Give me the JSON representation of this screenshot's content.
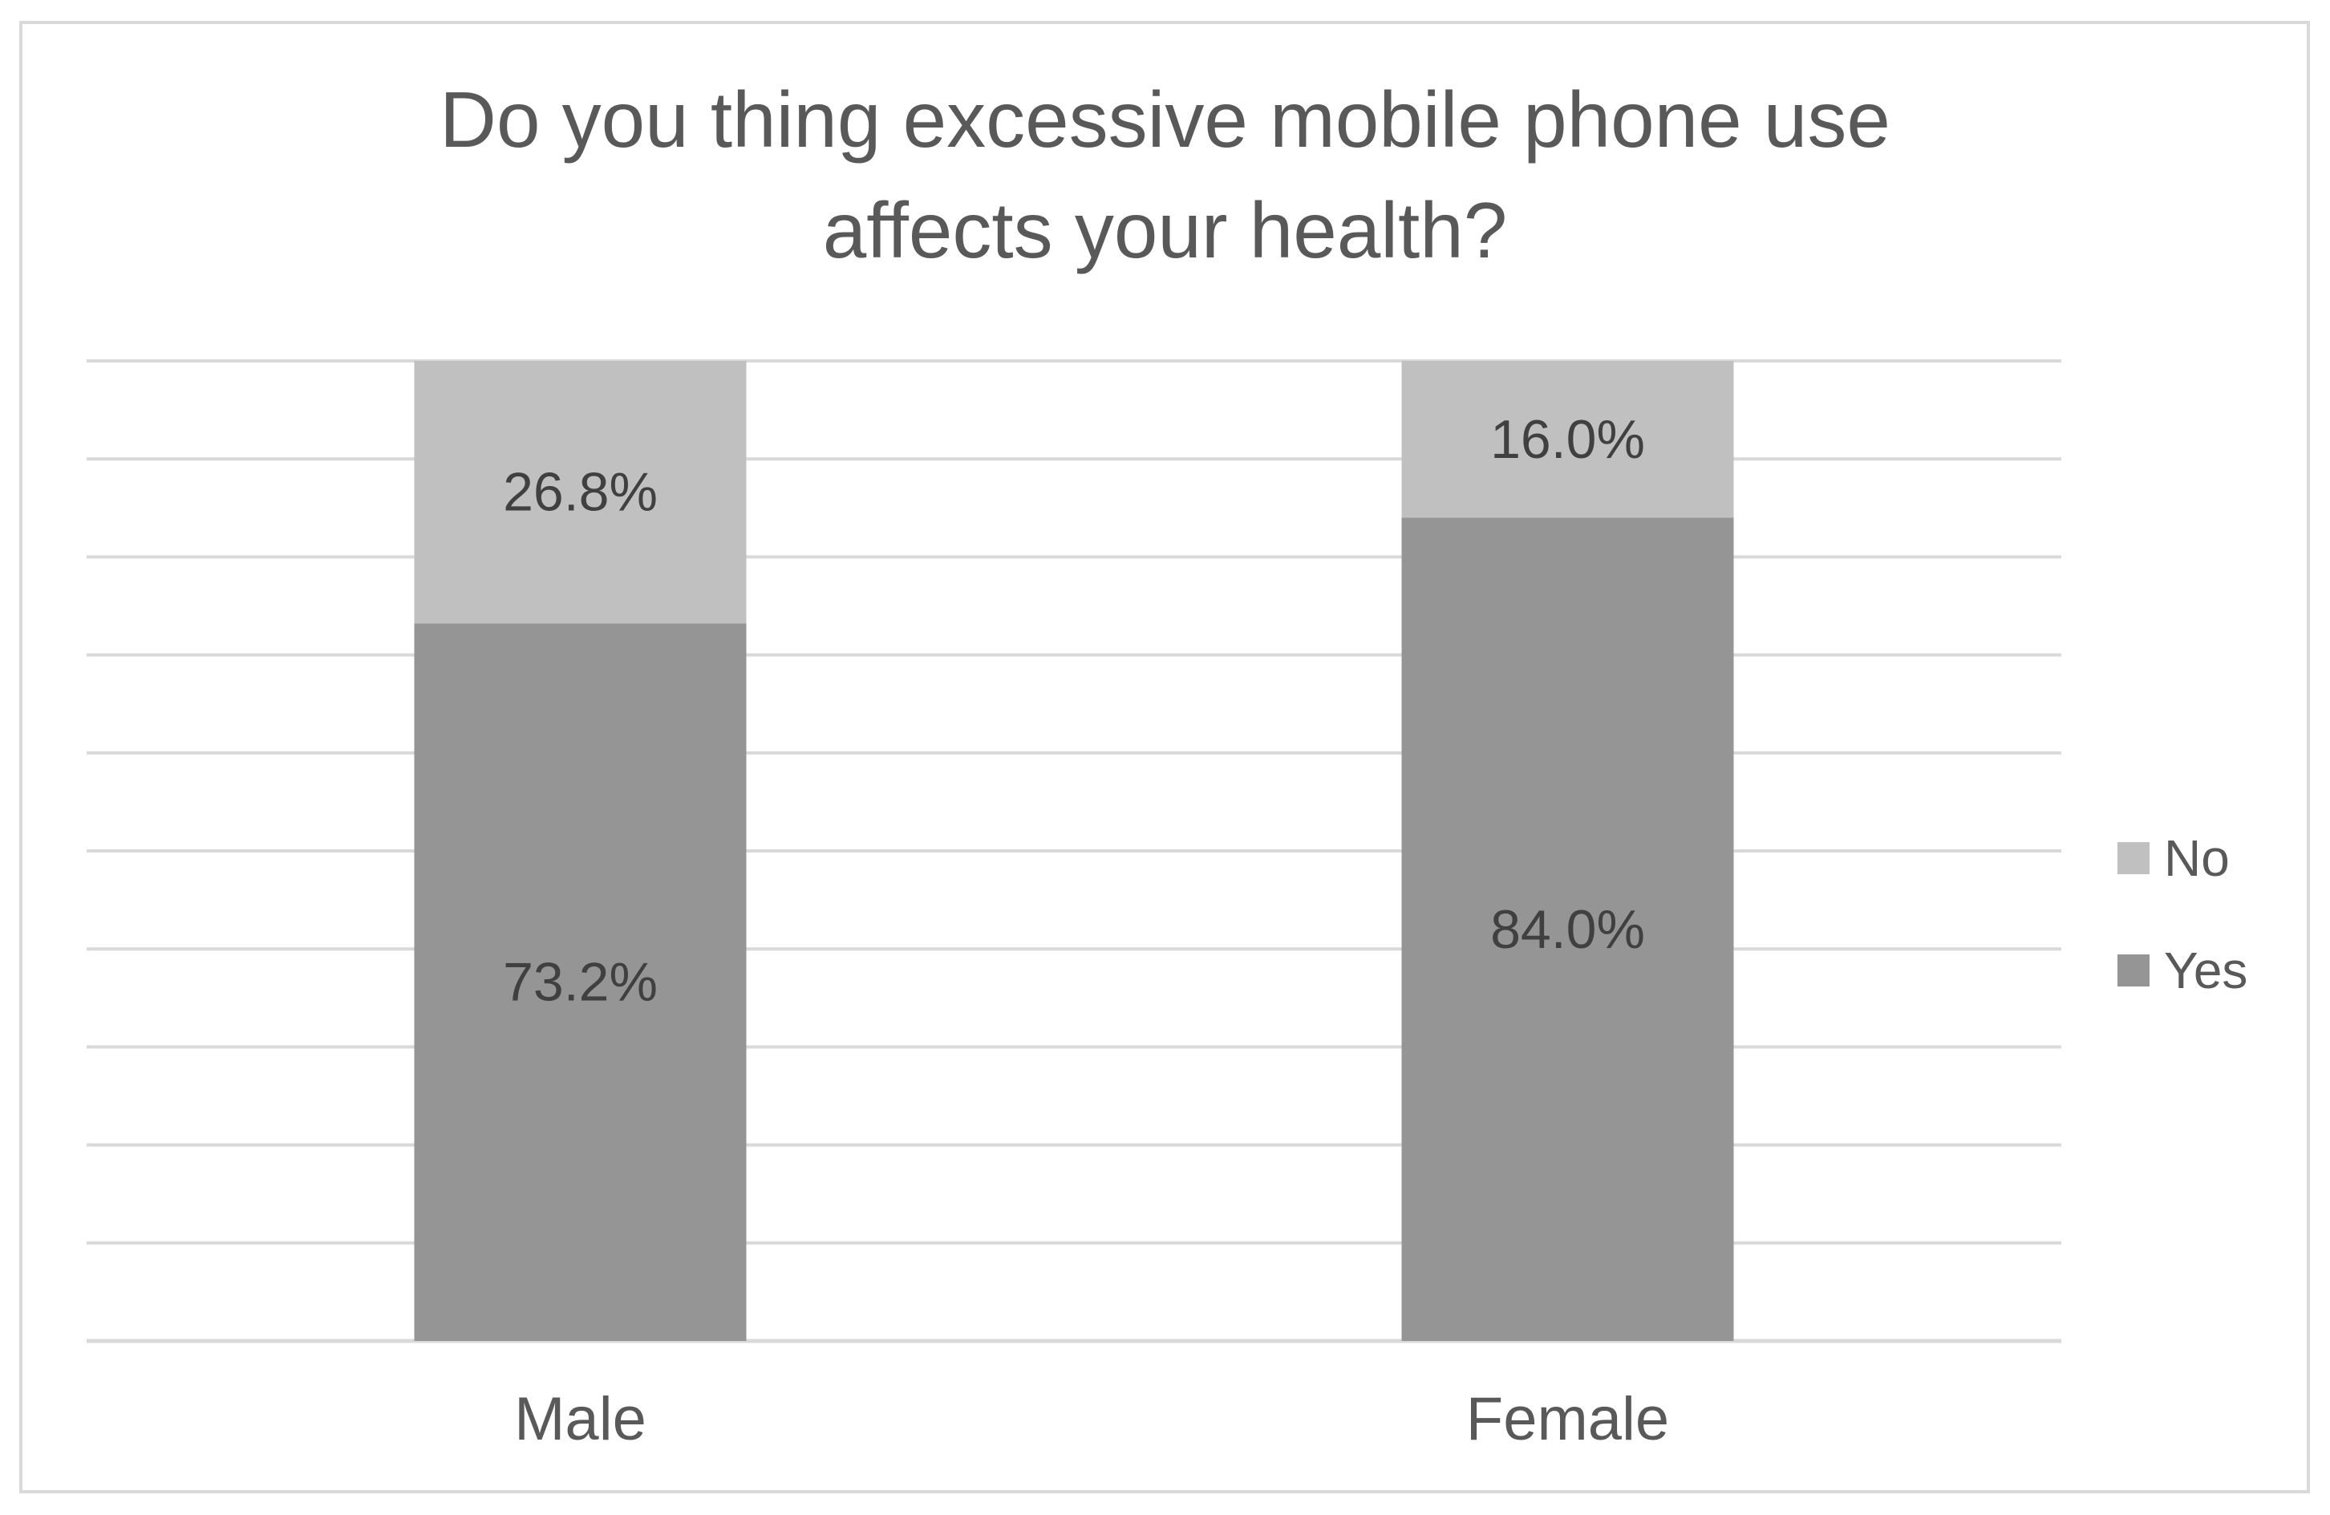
{
  "chart_data": {
    "type": "bar",
    "stacked": true,
    "title": "Do you thing excessive mobile phone use affects your health?",
    "categories": [
      "Male",
      "Female"
    ],
    "series": [
      {
        "name": "Yes",
        "values": [
          73.2,
          84.0
        ],
        "labels": [
          "73.2%",
          "84.0%"
        ],
        "color": "#959595"
      },
      {
        "name": "No",
        "values": [
          26.8,
          16.0
        ],
        "labels": [
          "26.8%",
          "16.0%"
        ],
        "color": "#c0c0c0"
      }
    ],
    "ylim": [
      0,
      100
    ],
    "gridlines": true,
    "legend_placement": "right",
    "legend_order": [
      "No",
      "Yes"
    ]
  }
}
